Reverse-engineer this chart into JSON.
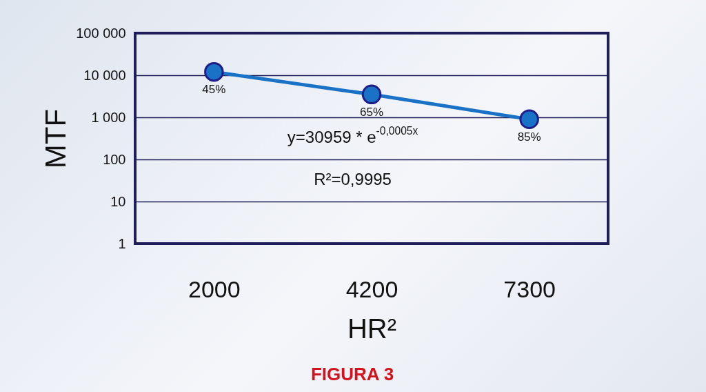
{
  "chart_data": {
    "type": "line",
    "xlabel": "HR²",
    "ylabel": "MTF",
    "categories": [
      "2000",
      "4200",
      "7300"
    ],
    "series": [
      {
        "color": "#1a72c6",
        "values": [
          12000,
          3500,
          900
        ]
      }
    ],
    "log": true,
    "ylim": [
      1,
      100000
    ],
    "yticks": [
      {
        "value": 1,
        "label": "1"
      },
      {
        "value": 10,
        "label": "10"
      },
      {
        "value": 100,
        "label": "100"
      },
      {
        "value": 1000,
        "label": "1 000"
      },
      {
        "value": 10000,
        "label": "10 000"
      },
      {
        "value": 100000,
        "label": "100 000"
      }
    ],
    "grid": "y",
    "marker": "circle",
    "line_style": "solid",
    "annotations": [
      {
        "text": "45%",
        "x": "2000",
        "y": 12000
      },
      {
        "text": "65%",
        "x": "4200",
        "y": 3500
      },
      {
        "text": "85%",
        "x": "7300",
        "y": 900
      },
      "y=30959 * e$^{-0,0005x}$",
      "R²=0,9995",
      "FIGURA 3"
    ]
  }
}
